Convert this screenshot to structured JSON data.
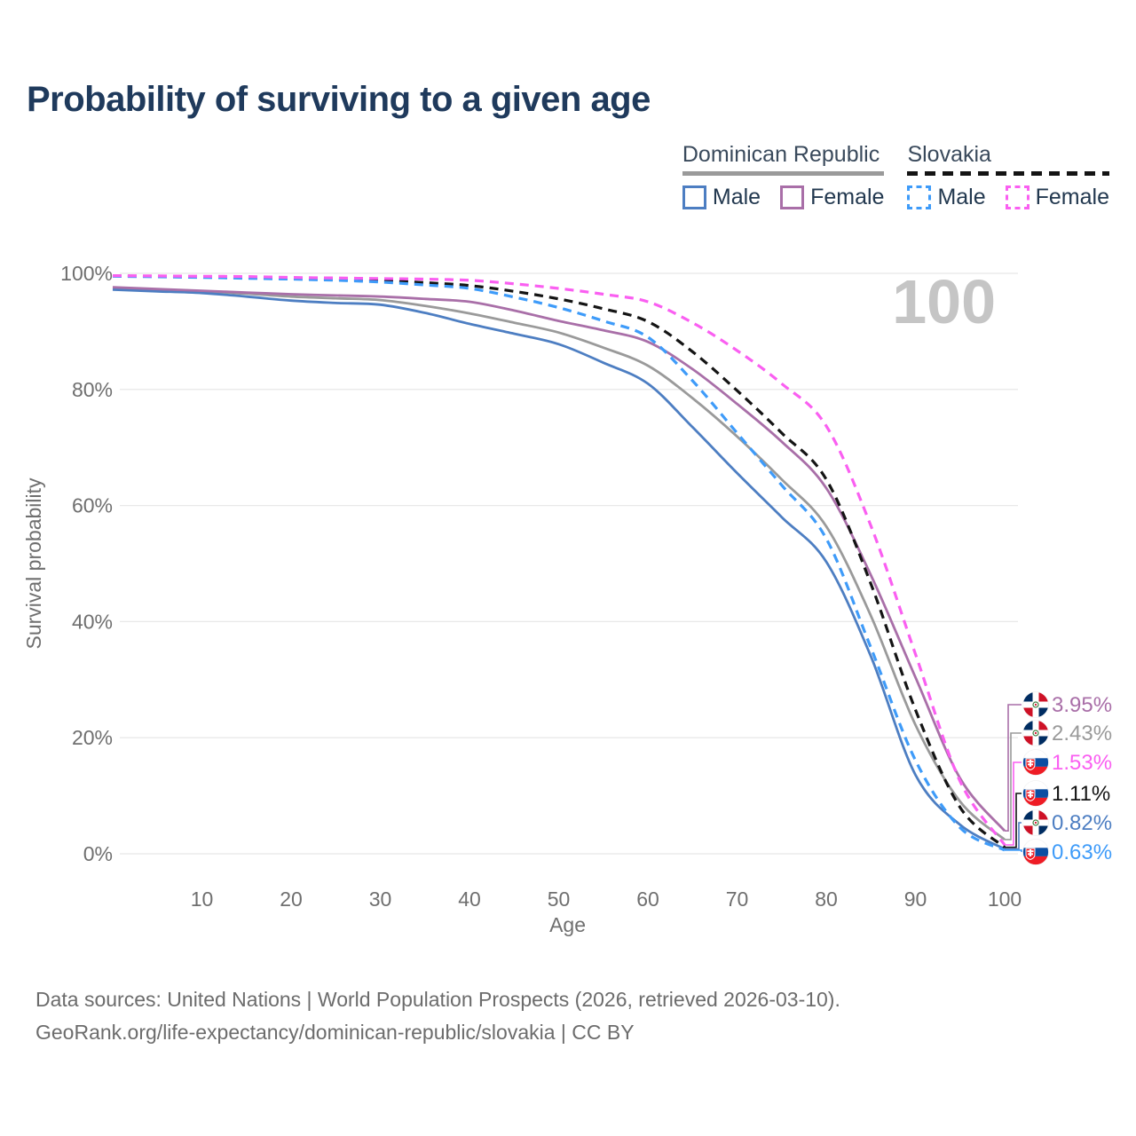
{
  "header": {
    "title": "Probability of surviving to a given age"
  },
  "watermark": "100",
  "legend": {
    "groups": [
      {
        "label": "Dominican Republic",
        "line_style": "solid",
        "line_color": "#9a9a9a",
        "items": [
          {
            "label": "Male",
            "color": "#4d7ec2",
            "style": "solid"
          },
          {
            "label": "Female",
            "color": "#a96fa8",
            "style": "solid"
          }
        ]
      },
      {
        "label": "Slovakia",
        "line_style": "dashed",
        "line_color": "#141414",
        "items": [
          {
            "label": "Male",
            "color": "#3e9bf9",
            "style": "dashed"
          },
          {
            "label": "Female",
            "color": "#fa5ff1",
            "style": "dashed"
          }
        ]
      }
    ]
  },
  "chart_data": {
    "type": "line",
    "title": "Probability of surviving to a given age",
    "xlabel": "Age",
    "ylabel": "Survival probability",
    "xlim": [
      0,
      100
    ],
    "ylim": [
      0,
      100
    ],
    "grid": "horizontal",
    "x_ticks": [
      10,
      20,
      30,
      40,
      50,
      60,
      70,
      80,
      90,
      100
    ],
    "y_ticks": [
      0,
      20,
      40,
      60,
      80,
      100
    ],
    "y_tick_suffix": "%",
    "legend_position": "top-right",
    "x": [
      0,
      5,
      10,
      15,
      20,
      25,
      30,
      35,
      40,
      45,
      50,
      55,
      60,
      65,
      70,
      75,
      80,
      85,
      90,
      95,
      100
    ],
    "series": [
      {
        "name": "Dominican Republic — Total",
        "country": "Dominican Republic",
        "sex": "Total",
        "style": "solid",
        "color": "#9a9a9a",
        "flag": "dominican-republic",
        "end_label": "2.43%",
        "end_value": 2.43,
        "values": [
          97.4,
          97.1,
          96.9,
          96.5,
          96.0,
          95.7,
          95.4,
          94.4,
          93.1,
          91.5,
          89.8,
          87.2,
          84.1,
          78.5,
          71.9,
          64.5,
          56.4,
          41.0,
          22.2,
          9.0,
          2.43
        ]
      },
      {
        "name": "Dominican Republic — Male",
        "country": "Dominican Republic",
        "sex": "Male",
        "style": "solid",
        "color": "#4d7ec2",
        "flag": "dominican-republic",
        "end_label": "0.82%",
        "end_value": 0.82,
        "values": [
          97.2,
          96.9,
          96.6,
          96.0,
          95.3,
          94.9,
          94.6,
          93.2,
          91.3,
          89.6,
          87.8,
          84.6,
          81.0,
          73.5,
          65.6,
          58.0,
          50.3,
          34.0,
          13.6,
          5.0,
          0.82
        ]
      },
      {
        "name": "Dominican Republic — Female",
        "country": "Dominican Republic",
        "sex": "Female",
        "style": "solid",
        "color": "#a96fa8",
        "flag": "dominican-republic",
        "end_label": "3.95%",
        "end_value": 3.95,
        "values": [
          97.6,
          97.3,
          97.0,
          96.7,
          96.4,
          96.2,
          96.0,
          95.6,
          95.1,
          93.6,
          91.8,
          90.2,
          88.2,
          83.5,
          77.5,
          71.0,
          63.0,
          48.0,
          30.4,
          13.0,
          3.95
        ]
      },
      {
        "name": "Slovakia — Total",
        "country": "Slovakia",
        "sex": "Total",
        "style": "dashed",
        "color": "#141414",
        "flag": "slovakia",
        "end_label": "1.11%",
        "end_value": 1.11,
        "values": [
          99.55,
          99.5,
          99.4,
          99.3,
          99.2,
          99.0,
          98.8,
          98.4,
          97.9,
          96.9,
          95.6,
          93.9,
          91.7,
          86.5,
          79.8,
          72.5,
          64.5,
          46.5,
          24.8,
          8.0,
          1.11
        ]
      },
      {
        "name": "Slovakia — Male",
        "country": "Slovakia",
        "sex": "Male",
        "style": "dashed",
        "color": "#3e9bf9",
        "flag": "slovakia",
        "end_label": "0.63%",
        "end_value": 0.63,
        "values": [
          99.5,
          99.4,
          99.3,
          99.15,
          99.0,
          98.8,
          98.5,
          98.0,
          97.4,
          95.9,
          94.1,
          91.8,
          89.0,
          81.5,
          72.5,
          63.5,
          54.3,
          35.5,
          16.1,
          4.5,
          0.63
        ]
      },
      {
        "name": "Slovakia — Female",
        "country": "Slovakia",
        "sex": "Female",
        "style": "dashed",
        "color": "#fa5ff1",
        "flag": "slovakia",
        "end_label": "1.53%",
        "end_value": 1.53,
        "values": [
          99.6,
          99.55,
          99.5,
          99.45,
          99.3,
          99.2,
          99.1,
          99.0,
          98.8,
          98.2,
          97.4,
          96.4,
          95.1,
          91.5,
          86.7,
          81.0,
          73.7,
          56.5,
          34.4,
          12.5,
          1.53
        ]
      }
    ]
  },
  "colors": {
    "title": "#1f3a5c",
    "axis_text": "#6f6f6f",
    "gridline": "#e8e8e8",
    "watermark": "#c5c5c5",
    "footer_text": "#6c6c6c",
    "flag_dr_blue": "#002d62",
    "flag_dr_red": "#ce1126",
    "flag_sk_blue": "#0b4ea2",
    "flag_sk_red": "#ee1c25"
  },
  "footer": {
    "line1": "Data sources: United Nations | World Population Prospects (2026, retrieved 2026-03-10).",
    "line2": "GeoRank.org/life-expectancy/dominican-republic/slovakia | CC BY"
  }
}
